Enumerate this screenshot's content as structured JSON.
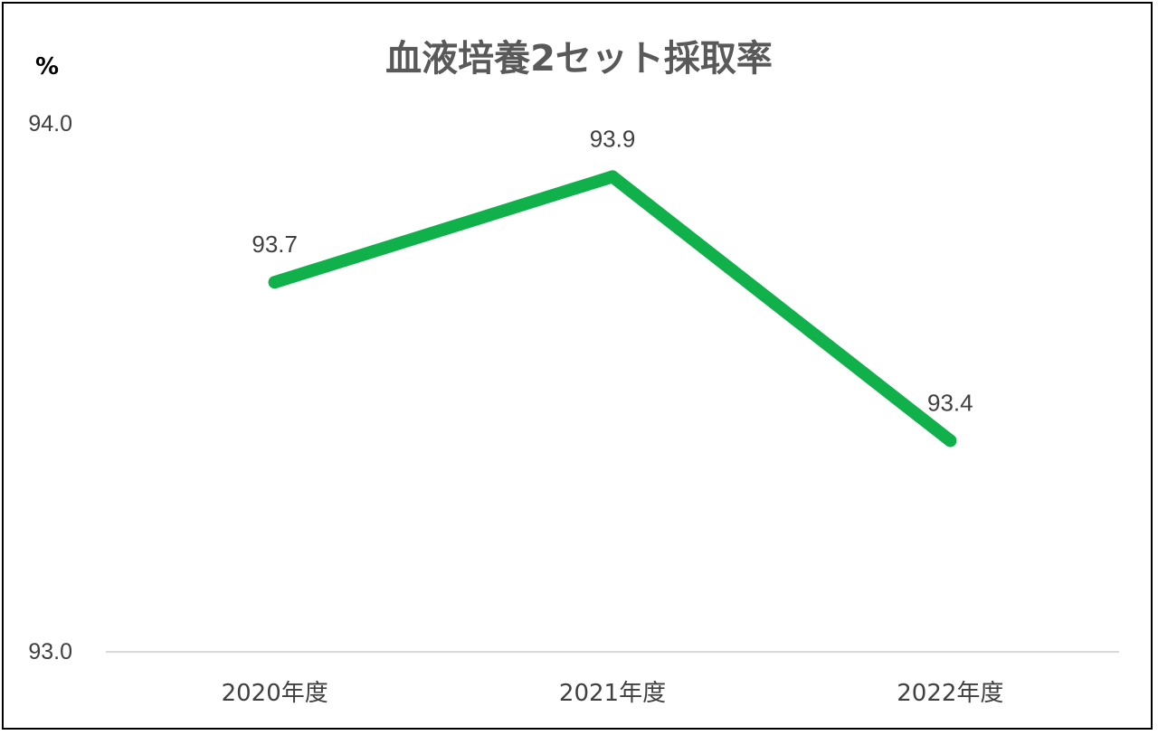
{
  "chart_data": {
    "type": "line",
    "title": "血液培養2セット採取率",
    "ylabel": "%",
    "xlabel": "",
    "categories": [
      "2020年度",
      "2021年度",
      "2022年度"
    ],
    "series": [
      {
        "values": [
          93.7,
          93.9,
          93.4
        ],
        "color": "#10b04a"
      }
    ],
    "data_labels": [
      "93.7",
      "93.9",
      "93.4"
    ],
    "ylim": [
      93.0,
      94.0
    ],
    "yticks": [
      "93.0",
      "94.0"
    ],
    "grid": false,
    "legend": "none"
  }
}
